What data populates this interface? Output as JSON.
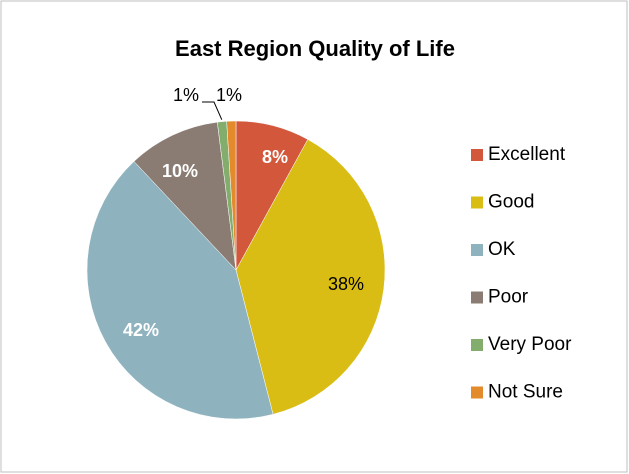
{
  "chart_data": {
    "type": "pie",
    "title": "East Region Quality of Life",
    "categories": [
      "Excellent",
      "Good",
      "OK",
      "Poor",
      "Very Poor",
      "Not Sure"
    ],
    "values": [
      8,
      38,
      42,
      10,
      1,
      1
    ],
    "value_labels": [
      "8%",
      "38%",
      "42%",
      "10%",
      "1%",
      "1%"
    ],
    "colors": [
      "#d2573b",
      "#d9bd14",
      "#8fb2bf",
      "#8a7c72",
      "#82ad6c",
      "#e38b2c"
    ],
    "legend": "right"
  }
}
